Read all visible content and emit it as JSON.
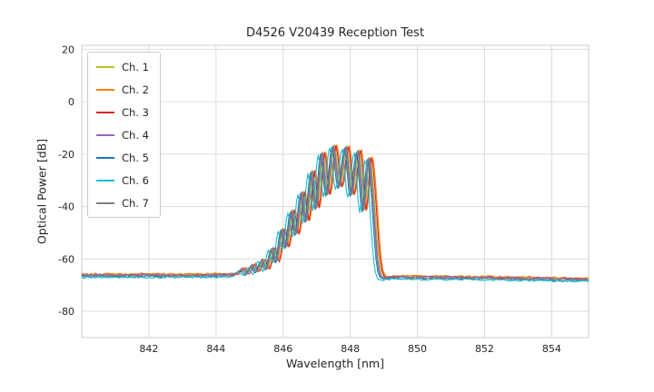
{
  "chart_data": {
    "type": "line",
    "title": "D4526 V20439 Reception Test",
    "xlabel": "Wavelength [nm]",
    "ylabel": "Optical Power [dB]",
    "xlim": [
      840.0,
      855.1
    ],
    "ylim": [
      -90.0,
      21.5
    ],
    "xticks": [
      842,
      844,
      846,
      848,
      850,
      852,
      854
    ],
    "yticks": [
      20,
      0,
      -20,
      -40,
      -60,
      -80
    ],
    "grid": true,
    "grid_color": "#dcdcdc",
    "frame_color": "#cccccc",
    "text_color": "#262626",
    "legend_position": "upper-left",
    "noise_floor_threshold_db": -58,
    "noise_amplitude_db": 0.35,
    "series_note": "each channel equals base_curve_nm_db shifted by wavelength_offset_nm and power_offset_db",
    "base_curve_nm_db": [
      [
        839.8,
        -66.2
      ],
      [
        840.5,
        -66.1
      ],
      [
        841.2,
        -66.2
      ],
      [
        842.0,
        -66.1
      ],
      [
        842.8,
        -66.2
      ],
      [
        843.6,
        -66.1
      ],
      [
        844.2,
        -66.0
      ],
      [
        844.6,
        -65.7
      ],
      [
        844.78,
        -63.8
      ],
      [
        844.92,
        -65.6
      ],
      [
        845.08,
        -62.3
      ],
      [
        845.22,
        -64.9
      ],
      [
        845.38,
        -60.2
      ],
      [
        845.52,
        -63.8
      ],
      [
        845.68,
        -55.8
      ],
      [
        845.82,
        -60.8
      ],
      [
        845.97,
        -48.5
      ],
      [
        846.1,
        -55.5
      ],
      [
        846.26,
        -41.5
      ],
      [
        846.4,
        -50.5
      ],
      [
        846.56,
        -34.5
      ],
      [
        846.7,
        -45.5
      ],
      [
        846.86,
        -26.5
      ],
      [
        847.0,
        -40.5
      ],
      [
        847.16,
        -19.5
      ],
      [
        847.32,
        -35.5
      ],
      [
        847.5,
        -16.8
      ],
      [
        847.68,
        -32.5
      ],
      [
        847.88,
        -17.2
      ],
      [
        848.04,
        -35.5
      ],
      [
        848.24,
        -18.6
      ],
      [
        848.4,
        -41.5
      ],
      [
        848.55,
        -21.5
      ],
      [
        848.66,
        -32.0
      ],
      [
        848.74,
        -47.0
      ],
      [
        848.82,
        -60.0
      ],
      [
        848.92,
        -66.3
      ],
      [
        849.3,
        -66.8
      ],
      [
        850.0,
        -66.9
      ],
      [
        851.0,
        -67.0
      ],
      [
        852.0,
        -67.1
      ],
      [
        853.0,
        -67.3
      ],
      [
        854.0,
        -67.5
      ],
      [
        855.4,
        -67.8
      ]
    ],
    "series": [
      {
        "name": "Ch. 1",
        "color": "#bcbd22",
        "wavelength_offset_nm": 0.03,
        "power_offset_db": 0.3
      },
      {
        "name": "Ch. 2",
        "color": "#ff7f0e",
        "wavelength_offset_nm": 0.1,
        "power_offset_db": 0.4
      },
      {
        "name": "Ch. 3",
        "color": "#d62728",
        "wavelength_offset_nm": 0.07,
        "power_offset_db": 0.0
      },
      {
        "name": "Ch. 4",
        "color": "#9467bd",
        "wavelength_offset_nm": 0.0,
        "power_offset_db": 0.1
      },
      {
        "name": "Ch. 5",
        "color": "#1f77b4",
        "wavelength_offset_nm": -0.05,
        "power_offset_db": -0.6
      },
      {
        "name": "Ch. 6",
        "color": "#17becf",
        "wavelength_offset_nm": -0.12,
        "power_offset_db": -0.9
      },
      {
        "name": "Ch. 7",
        "color": "#7f7f7f",
        "wavelength_offset_nm": -0.02,
        "power_offset_db": -0.2
      }
    ]
  }
}
